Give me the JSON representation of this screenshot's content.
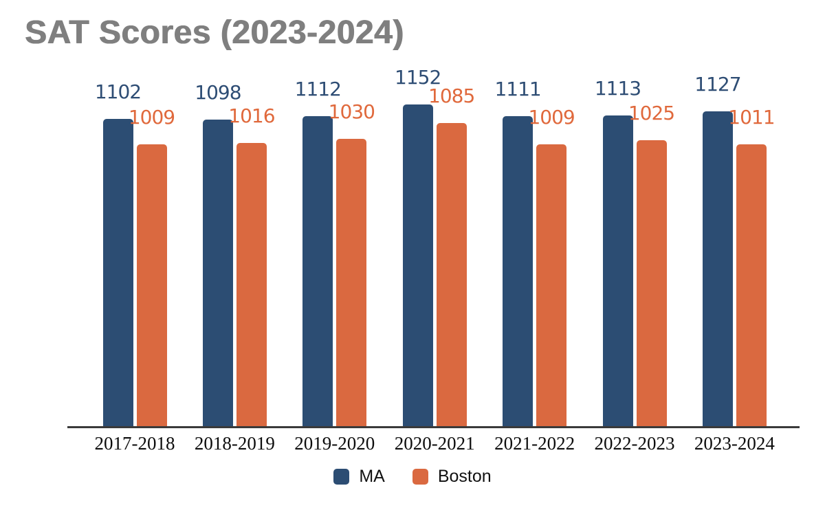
{
  "title": "SAT Scores (2023-2024)",
  "chart_data": {
    "type": "bar",
    "title": "SAT Scores (2023-2024)",
    "categories": [
      "2017-2018",
      "2018-2019",
      "2019-2020",
      "2020-2021",
      "2021-2022",
      "2022-2023",
      "2023-2024"
    ],
    "series": [
      {
        "name": "MA",
        "color": "#2C4D73",
        "label_color": "#2E4D74",
        "values": [
          1102,
          1098,
          1112,
          1152,
          1111,
          1113,
          1127
        ]
      },
      {
        "name": "Boston",
        "color": "#DA6940",
        "label_color": "#E0693C",
        "values": [
          1009,
          1016,
          1030,
          1085,
          1009,
          1025,
          1011
        ]
      }
    ],
    "xlabel": "",
    "ylabel": "",
    "ylim": [
      0,
      1200
    ],
    "grid": false,
    "data_labels": true,
    "legend_position": "bottom"
  },
  "colors": {
    "title_text": "#7f7f7f",
    "axis_line": "#3a3a3a",
    "background": "#ffffff"
  }
}
